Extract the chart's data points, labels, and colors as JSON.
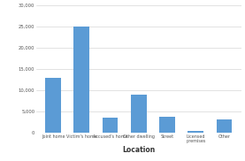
{
  "categories": [
    "Joint home",
    "Victim's home",
    "Accused's home",
    "Other dwelling",
    "Street",
    "Licensed\npremises",
    "Other"
  ],
  "values": [
    13000,
    25000,
    3500,
    9000,
    3700,
    400,
    3200
  ],
  "bar_color": "#5b9bd5",
  "xlabel": "Location",
  "ylabel": "",
  "ylim": [
    0,
    30000
  ],
  "yticks": [
    0,
    5000,
    10000,
    15000,
    20000,
    25000,
    30000
  ],
  "title": "",
  "background_color": "#ffffff"
}
